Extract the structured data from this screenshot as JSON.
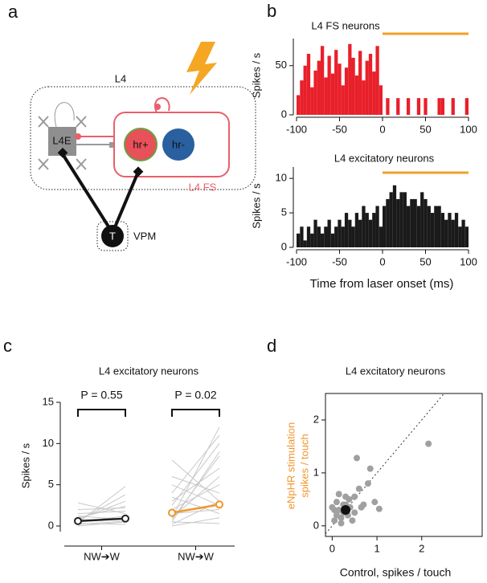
{
  "diagram": {
    "panel_label": "a",
    "box_label": "L4",
    "excitatory_label": "L4E",
    "hr_pos_label": "hr+",
    "hr_neg_label": "hr-",
    "fs_label": "L4 FS",
    "thalamus_cell_label": "T",
    "thalamus_label": "VPM"
  },
  "chart_data": [
    {
      "type": "histogram",
      "panel_label": "b",
      "title": "L4 FS neurons",
      "ylabel": "Spikes / s",
      "color": "#e8202a",
      "bins": [
        -100,
        -96,
        -92,
        -88,
        -84,
        -80,
        -76,
        -72,
        -68,
        -64,
        -60,
        -56,
        -52,
        -48,
        -44,
        -40,
        -36,
        -32,
        -28,
        -24,
        -20,
        -16,
        -12,
        -8,
        -4,
        0,
        4,
        8,
        12,
        16,
        20,
        24,
        28,
        32,
        36,
        40,
        44,
        48,
        52,
        56,
        60,
        64,
        68,
        72,
        76,
        80,
        84,
        88,
        92,
        96,
        100
      ],
      "values": [
        20,
        35,
        50,
        62,
        28,
        45,
        55,
        70,
        38,
        60,
        42,
        66,
        52,
        30,
        48,
        72,
        58,
        40,
        65,
        35,
        55,
        62,
        44,
        70,
        30,
        0,
        17,
        0,
        0,
        17,
        0,
        0,
        17,
        0,
        0,
        17,
        0,
        17,
        0,
        0,
        0,
        17,
        17,
        0,
        0,
        17,
        0,
        0,
        0,
        17
      ],
      "xlim": [
        -100,
        100
      ],
      "xticks": [
        -100,
        -50,
        0,
        50,
        100
      ],
      "ylim": [
        0,
        80
      ],
      "yticks": [
        0,
        50
      ],
      "highlight": {
        "x": [
          0,
          100
        ],
        "color": "#f2a024"
      }
    },
    {
      "type": "histogram",
      "title": "L4 excitatory neurons",
      "ylabel": "Spikes / s",
      "xlabel": "Time from laser onset (ms)",
      "color": "#1a1a1a",
      "bins": [
        -100,
        -96,
        -92,
        -88,
        -84,
        -80,
        -76,
        -72,
        -68,
        -64,
        -60,
        -56,
        -52,
        -48,
        -44,
        -40,
        -36,
        -32,
        -28,
        -24,
        -20,
        -16,
        -12,
        -8,
        -4,
        0,
        4,
        8,
        12,
        16,
        20,
        24,
        28,
        32,
        36,
        40,
        44,
        48,
        52,
        56,
        60,
        64,
        68,
        72,
        76,
        80,
        84,
        88,
        92,
        96,
        100
      ],
      "values": [
        2,
        3,
        1,
        3,
        2,
        4,
        3,
        2,
        3,
        4,
        2,
        3,
        4,
        3,
        5,
        4,
        3,
        5,
        4,
        6,
        5,
        4,
        5,
        6,
        3,
        6,
        7,
        8,
        9,
        7,
        8,
        8,
        6,
        7,
        7,
        6,
        8,
        7,
        6,
        5,
        6,
        6,
        5,
        4,
        5,
        4,
        5,
        3,
        4,
        3
      ],
      "xlim": [
        -100,
        100
      ],
      "xticks": [
        -100,
        -50,
        0,
        50,
        100
      ],
      "ylim": [
        0,
        12
      ],
      "yticks": [
        0,
        5,
        10
      ],
      "highlight": {
        "x": [
          0,
          100
        ],
        "color": "#f2a024"
      }
    },
    {
      "type": "slope",
      "panel_label": "c",
      "title": "L4 excitatory neurons",
      "ylabel": "Spikes / s",
      "ylim": [
        0,
        15
      ],
      "yticks": [
        0,
        5,
        10,
        15
      ],
      "line_color": "#c8c8c8",
      "groups": [
        {
          "label": "NW➔W",
          "p_label": "P = 0.55",
          "color": "#222222",
          "mean": [
            0.6,
            0.9
          ],
          "lines": [
            [
              0.5,
              1.2
            ],
            [
              1.0,
              2.4
            ],
            [
              0.3,
              0.2
            ],
            [
              2.8,
              1.5
            ],
            [
              0.8,
              3.0
            ],
            [
              0.2,
              0.6
            ],
            [
              1.5,
              1.8
            ],
            [
              0.4,
              4.8
            ],
            [
              0,
              0.5
            ],
            [
              1.2,
              0.8
            ],
            [
              0.6,
              3.8
            ],
            [
              2.0,
              2.2
            ]
          ]
        },
        {
          "label": "NW➔W",
          "p_label": "P = 0.02",
          "color": "#f0962a",
          "mean": [
            1.6,
            2.6
          ],
          "lines": [
            [
              1,
              12
            ],
            [
              4,
              11
            ],
            [
              0.5,
              9
            ],
            [
              3,
              7
            ],
            [
              2,
              5
            ],
            [
              0.2,
              3
            ],
            [
              6,
              4
            ],
            [
              1.5,
              2
            ],
            [
              8,
              3
            ],
            [
              0.5,
              0.3
            ],
            [
              2.5,
              10
            ],
            [
              1,
              6
            ],
            [
              3.5,
              1.5
            ],
            [
              0.8,
              8.5
            ],
            [
              5,
              2.5
            ],
            [
              0,
              1
            ]
          ]
        }
      ]
    },
    {
      "type": "scatter",
      "panel_label": "d",
      "title": "L4 excitatory neurons",
      "xlabel": "Control, spikes / touch",
      "ylabel": [
        "eNpHR stimulation",
        "spikes / touch"
      ],
      "ylabel_color": "#f0962a",
      "color": "#a0a0a0",
      "x": [
        0.05,
        0.1,
        0.15,
        0.2,
        0.25,
        0.3,
        0.1,
        0.05,
        0.35,
        0.4,
        0.45,
        0.5,
        0.55,
        0.6,
        0.65,
        0.8,
        0.85,
        0.95,
        1.05,
        2.15,
        0.2,
        0.15,
        0.3,
        0.25,
        0.5,
        0.7,
        0.0,
        0.38
      ],
      "values": [
        0.1,
        0.2,
        0.3,
        0.15,
        0.4,
        0.55,
        0.45,
        0.3,
        0.2,
        0.35,
        0.1,
        0.55,
        1.28,
        0.7,
        0.35,
        0.8,
        1.08,
        0.45,
        0.32,
        1.55,
        0.05,
        0.6,
        0.4,
        0.25,
        0.25,
        0.4,
        0.35,
        0.5
      ],
      "mean_point": {
        "x": 0.3,
        "value": 0.3,
        "color": "#111111"
      },
      "xlim": [
        -0.15,
        3.35
      ],
      "xticks": [
        0,
        1,
        2
      ],
      "ylim": [
        -0.2,
        2.5
      ],
      "yticks": [
        0,
        1,
        2
      ]
    }
  ]
}
